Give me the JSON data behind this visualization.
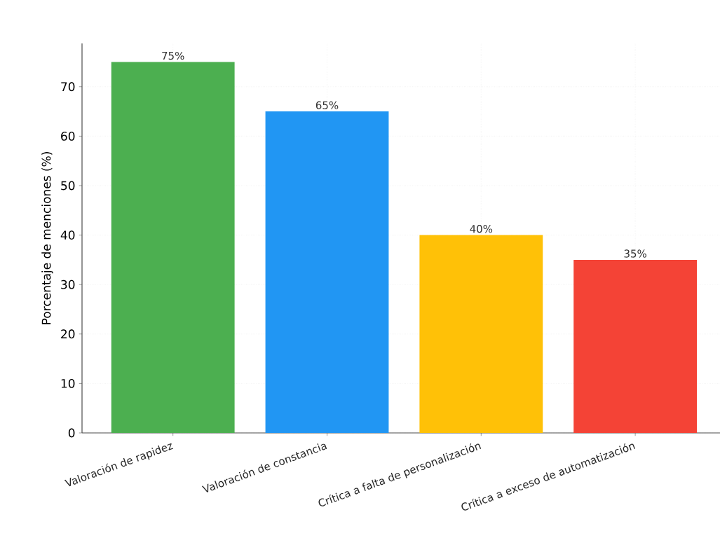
{
  "chart_data": {
    "type": "bar",
    "ylabel": "Porcentaje de menciones (%)",
    "categories": [
      "Valoración de rapidez",
      "Valoración de constancia",
      "Crítica a falta de personalización",
      "Crítica a exceso de automatización"
    ],
    "values": [
      75,
      65,
      40,
      35
    ],
    "value_labels": [
      "75%",
      "65%",
      "40%",
      "35%"
    ],
    "colors": [
      "#4caf50",
      "#2196f3",
      "#ffc107",
      "#f44336"
    ],
    "ylim": [
      0,
      78.75
    ],
    "yticks": [
      0,
      10,
      20,
      30,
      40,
      50,
      60,
      70
    ],
    "grid": true
  }
}
